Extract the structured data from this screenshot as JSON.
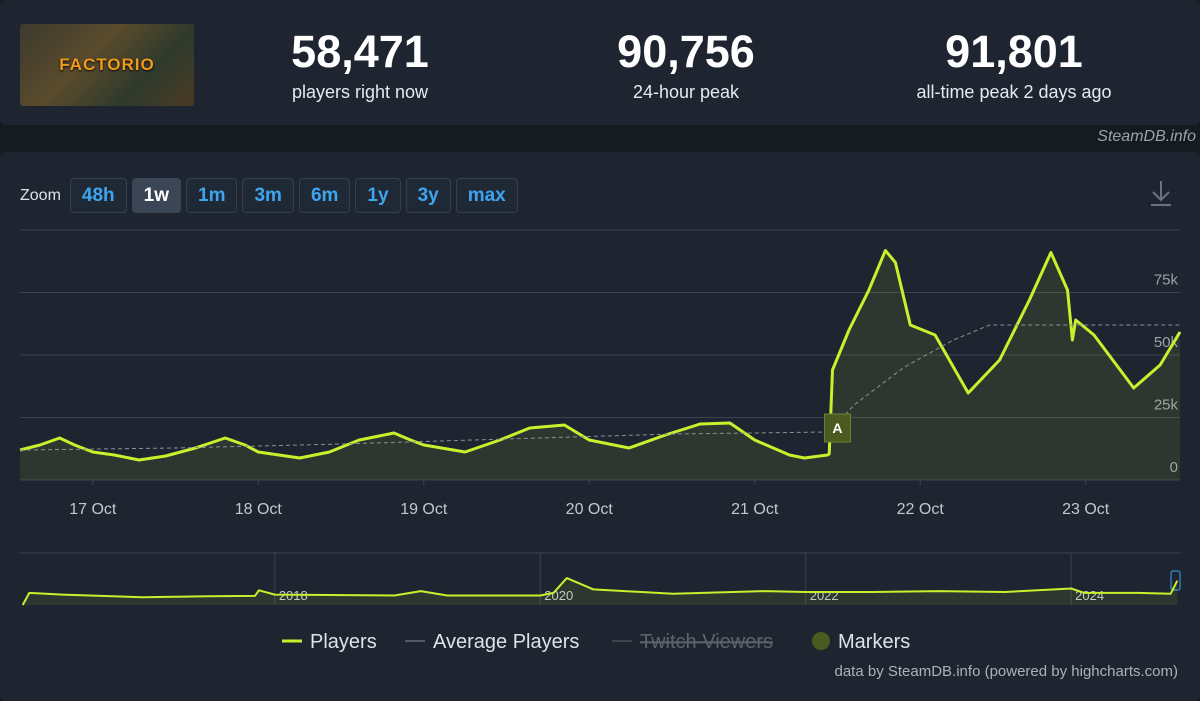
{
  "header": {
    "logo_text": "FACTORIO",
    "stats": [
      {
        "value": "58,471",
        "label": "players right now"
      },
      {
        "value": "90,756",
        "label": "24-hour peak"
      },
      {
        "value": "91,801",
        "label": "all-time peak 2 days ago"
      }
    ]
  },
  "site_label": "SteamDB.info",
  "zoom": {
    "label": "Zoom",
    "options": [
      "48h",
      "1w",
      "1m",
      "3m",
      "6m",
      "1y",
      "3y",
      "max"
    ],
    "active": 1
  },
  "chart_data": [
    {
      "type": "line",
      "xlim": [
        16.56,
        23.57
      ],
      "ylim": [
        0,
        100000
      ],
      "xticks": [
        {
          "value": 17,
          "label": "17 Oct"
        },
        {
          "value": 18,
          "label": "18 Oct"
        },
        {
          "value": 19,
          "label": "19 Oct"
        },
        {
          "value": 20,
          "label": "20 Oct"
        },
        {
          "value": 21,
          "label": "21 Oct"
        },
        {
          "value": 22,
          "label": "22 Oct"
        },
        {
          "value": 23,
          "label": "23 Oct"
        }
      ],
      "yticks": [
        0,
        {
          "value": 25000,
          "label": "25k"
        },
        {
          "value": 50000,
          "label": "50k"
        },
        {
          "value": 75000,
          "label": "75k"
        }
      ],
      "grid": "y",
      "series": [
        {
          "name": "Players",
          "color": "#c8f02c",
          "area": true,
          "x": [
            16.56,
            16.68,
            16.8,
            16.89,
            17.0,
            17.13,
            17.28,
            17.44,
            17.62,
            17.8,
            17.92,
            18.0,
            18.25,
            18.43,
            18.61,
            18.82,
            18.92,
            19.0,
            19.25,
            19.46,
            19.64,
            19.85,
            20.0,
            20.24,
            20.46,
            20.67,
            20.85,
            21.0,
            21.21,
            21.3,
            21.44,
            21.45,
            21.47,
            21.57,
            21.69,
            21.79,
            21.85,
            21.94,
            22.09,
            22.29,
            22.48,
            22.66,
            22.79,
            22.89,
            22.92,
            22.94,
            23.05,
            23.29,
            23.45,
            23.57
          ],
          "values": [
            12000,
            14000,
            16800,
            14000,
            11200,
            10000,
            8000,
            9600,
            12800,
            16800,
            14000,
            11200,
            8800,
            11200,
            16000,
            18800,
            16000,
            14000,
            11200,
            16000,
            20800,
            22000,
            16000,
            12800,
            18000,
            22400,
            22800,
            16000,
            10000,
            8800,
            10000,
            10400,
            44000,
            60000,
            76000,
            91800,
            87000,
            62000,
            58000,
            34800,
            48000,
            72000,
            91000,
            76000,
            56000,
            64000,
            58000,
            36800,
            46000,
            59200
          ]
        },
        {
          "name": "Average Players",
          "color": "#8a9099",
          "dash": true,
          "x": [
            16.56,
            17.5,
            18.5,
            19.5,
            20.5,
            21.45,
            21.6,
            21.9,
            22.2,
            22.42,
            23.57
          ],
          "values": [
            12000,
            12800,
            14400,
            16400,
            18400,
            19200,
            30000,
            45000,
            56000,
            62000,
            62000
          ]
        },
        {
          "name": "Twitch Viewers",
          "color": "#5c636c",
          "hidden": true,
          "x": [],
          "values": []
        }
      ],
      "markers": {
        "name": "Markers",
        "color": "#4b5a1f",
        "items": [
          {
            "x": 21.5,
            "label": "A"
          }
        ]
      }
    },
    {
      "type": "line",
      "xlim": [
        2016.08,
        2024.82
      ],
      "ylim": [
        0,
        60000
      ],
      "xticks": [
        2018,
        2020,
        2022,
        2024
      ],
      "grid": "x",
      "series": [
        {
          "name": "Players",
          "color": "#c8f02c",
          "area": true,
          "x": [
            2016.1,
            2016.15,
            2016.4,
            2017,
            2017.5,
            2017.85,
            2017.88,
            2018.0,
            2018.9,
            2019.1,
            2019.3,
            2020.0,
            2020.1,
            2020.2,
            2020.4,
            2021,
            2021.7,
            2022,
            2022.5,
            2023,
            2023.5,
            2024,
            2024.1,
            2024.5,
            2024.75,
            2024.8
          ],
          "values": [
            0,
            14000,
            12000,
            9000,
            10000,
            10500,
            17000,
            12000,
            11000,
            16000,
            11000,
            11000,
            14000,
            31000,
            18000,
            13000,
            16000,
            15000,
            15000,
            16000,
            15000,
            19000,
            14000,
            14000,
            13000,
            28000
          ]
        }
      ]
    }
  ],
  "credits": "data by SteamDB.info (powered by highcharts.com)"
}
